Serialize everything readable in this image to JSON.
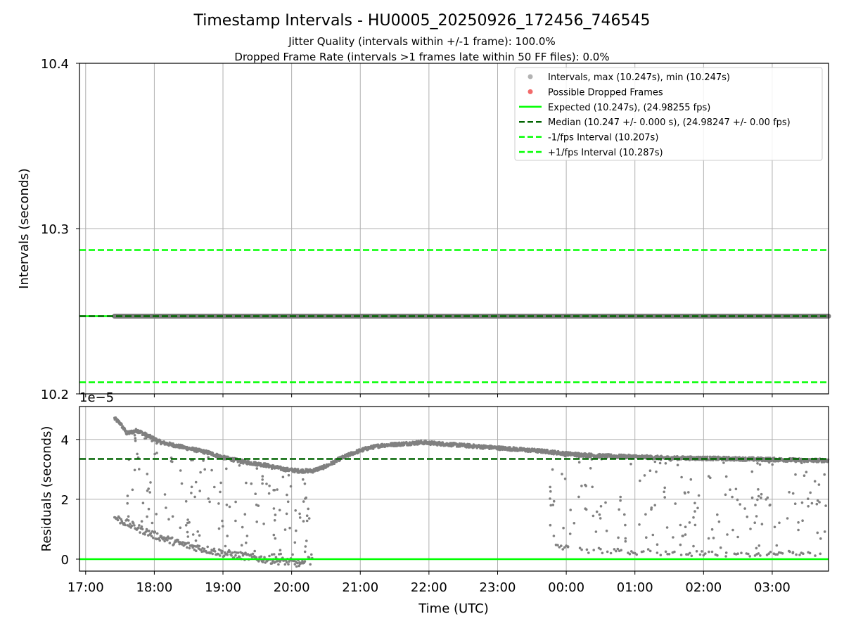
{
  "figure": {
    "title": "Timestamp Intervals - HU0005_20250926_172456_746545",
    "subtitle_1": "Jitter Quality (intervals within +/-1 frame): 100.0%",
    "subtitle_2": "Dropped Frame Rate (intervals >1 frames late within 50 FF files): 0.0%"
  },
  "colors": {
    "grid": "#b0b0b0",
    "points": "#808080",
    "expected": "#00ff00",
    "median": "#006400",
    "interval": "#00ff00",
    "dropped": "#f05050"
  },
  "chart_data": [
    {
      "type": "line",
      "ylabel": "Intervals (seconds)",
      "xlabel": "",
      "ylim": [
        10.2,
        10.4
      ],
      "yticks": [
        "10.2",
        "10.3",
        "10.4"
      ],
      "xlim_hours": [
        16.91,
        27.82
      ],
      "xtick_hours": [
        17,
        18,
        19,
        20,
        21,
        22,
        23,
        24,
        25,
        26,
        27
      ],
      "grid": true,
      "legend_position": "top-right",
      "legend": [
        {
          "label": "Intervals, max (10.247s), min (10.247s)",
          "kind": "marker",
          "color": "#a6a6a6"
        },
        {
          "label": "Possible Dropped Frames",
          "kind": "marker",
          "color": "#f05050"
        },
        {
          "label": "Expected (10.247s), (24.98255 fps)",
          "kind": "line",
          "color": "#00ff00"
        },
        {
          "label": "Median (10.247 +/- 0.000 s), (24.98247 +/- 0.00 fps)",
          "kind": "dash",
          "color": "#006400"
        },
        {
          "label": "-1/fps Interval (10.207s)",
          "kind": "dash",
          "color": "#00ff00"
        },
        {
          "label": "+1/fps Interval (10.287s)",
          "kind": "dash",
          "color": "#00ff00"
        }
      ],
      "series": [
        {
          "name": "Intervals, max (10.247s), min (10.247s)",
          "x_start_hour": 17.42,
          "x_end_hour": 27.82,
          "value": 10.247
        },
        {
          "name": "Expected (10.247s), (24.98255 fps)",
          "value": 10.247
        },
        {
          "name": "Median (10.247 +/- 0.000 s), (24.98247 +/- 0.00 fps)",
          "value": 10.247
        },
        {
          "name": "-1/fps Interval (10.207s)",
          "value": 10.207
        },
        {
          "name": "+1/fps Interval (10.287s)",
          "value": 10.287
        }
      ]
    },
    {
      "type": "scatter",
      "ylabel": "Residuals (seconds)",
      "xlabel": "Time (UTC)",
      "offset_text": "1e−5",
      "ylim": [
        -0.4,
        5.1
      ],
      "yticks": [
        0,
        2,
        4
      ],
      "xlim_hours": [
        16.91,
        27.82
      ],
      "xtick_hours": [
        17,
        18,
        19,
        20,
        21,
        22,
        23,
        24,
        25,
        26,
        27
      ],
      "xtick_labels": [
        "17:00",
        "18:00",
        "19:00",
        "20:00",
        "21:00",
        "22:00",
        "23:00",
        "00:00",
        "01:00",
        "02:00",
        "03:00"
      ],
      "grid": true,
      "expected_residual": 0.0,
      "median_residual": 3.35,
      "main_band": [
        [
          17.42,
          4.7
        ],
        [
          17.5,
          4.55
        ],
        [
          17.6,
          4.2
        ],
        [
          17.75,
          4.3
        ],
        [
          18.1,
          3.9
        ],
        [
          18.3,
          3.8
        ],
        [
          18.5,
          3.7
        ],
        [
          18.8,
          3.55
        ],
        [
          19.0,
          3.4
        ],
        [
          19.3,
          3.25
        ],
        [
          19.6,
          3.15
        ],
        [
          19.9,
          3.0
        ],
        [
          20.1,
          2.95
        ],
        [
          20.3,
          2.95
        ],
        [
          20.5,
          3.1
        ],
        [
          20.7,
          3.35
        ],
        [
          20.9,
          3.55
        ],
        [
          21.1,
          3.7
        ],
        [
          21.3,
          3.8
        ],
        [
          21.6,
          3.85
        ],
        [
          21.9,
          3.9
        ],
        [
          22.2,
          3.85
        ],
        [
          22.5,
          3.8
        ],
        [
          22.8,
          3.75
        ],
        [
          23.1,
          3.7
        ],
        [
          23.4,
          3.65
        ],
        [
          23.7,
          3.6
        ],
        [
          24.0,
          3.52
        ],
        [
          24.5,
          3.45
        ],
        [
          25.0,
          3.42
        ],
        [
          25.5,
          3.38
        ],
        [
          26.0,
          3.37
        ],
        [
          26.5,
          3.35
        ],
        [
          27.0,
          3.33
        ],
        [
          27.5,
          3.3
        ],
        [
          27.82,
          3.3
        ]
      ],
      "lower_band": [
        [
          17.42,
          1.4
        ],
        [
          17.6,
          1.2
        ],
        [
          17.8,
          1.0
        ],
        [
          18.0,
          0.8
        ],
        [
          18.2,
          0.65
        ],
        [
          18.4,
          0.5
        ],
        [
          18.6,
          0.4
        ],
        [
          18.8,
          0.3
        ],
        [
          19.0,
          0.2
        ],
        [
          19.3,
          0.1
        ],
        [
          19.6,
          0.0
        ],
        [
          19.8,
          -0.05
        ],
        [
          20.0,
          -0.1
        ],
        [
          20.2,
          -0.2
        ]
      ],
      "lower_band_2": [
        [
          23.8,
          0.4
        ],
        [
          24.3,
          0.3
        ],
        [
          24.8,
          0.25
        ],
        [
          25.3,
          0.2
        ],
        [
          25.8,
          0.18
        ],
        [
          26.3,
          0.17
        ],
        [
          26.8,
          0.16
        ],
        [
          27.3,
          0.15
        ],
        [
          27.7,
          0.15
        ]
      ]
    }
  ]
}
